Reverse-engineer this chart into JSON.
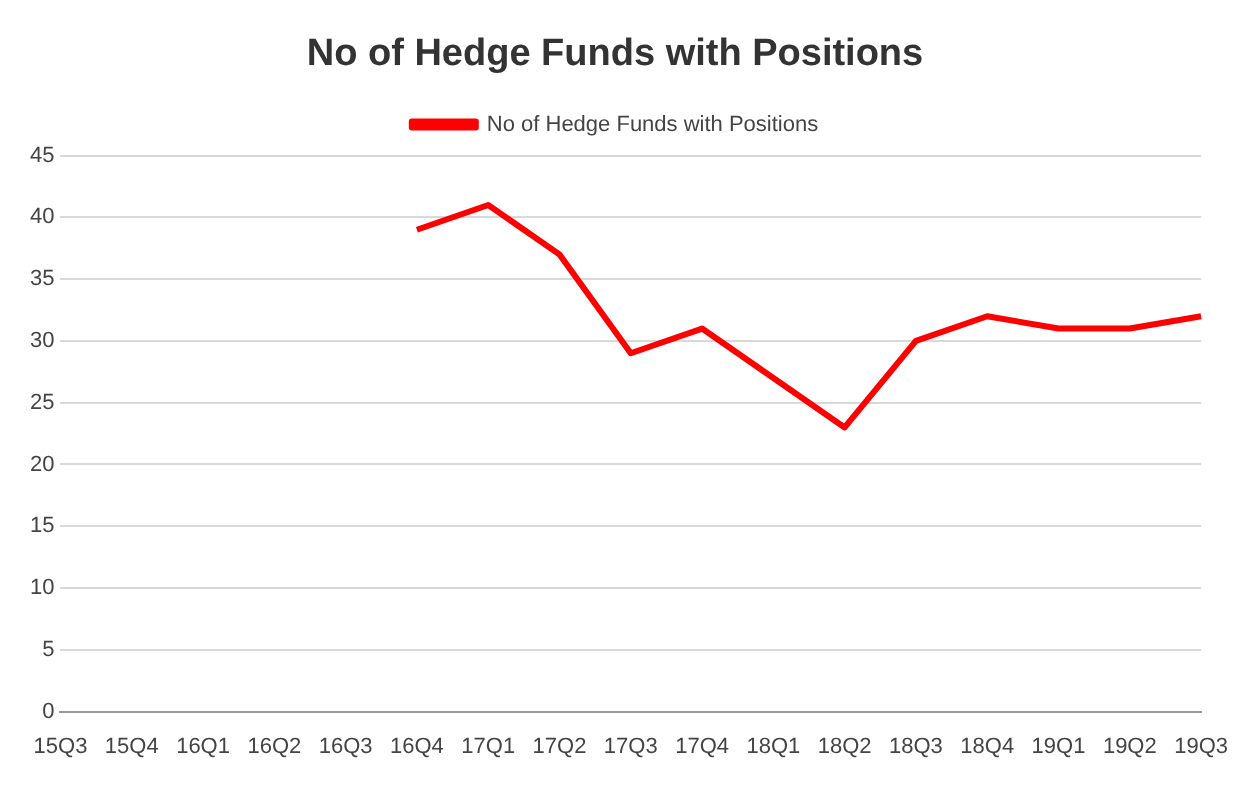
{
  "chart_data": {
    "type": "line",
    "title": "No of Hedge Funds with Positions",
    "categories": [
      "15Q3",
      "15Q4",
      "16Q1",
      "16Q2",
      "16Q3",
      "16Q4",
      "17Q1",
      "17Q2",
      "17Q3",
      "17Q4",
      "18Q1",
      "18Q2",
      "18Q3",
      "18Q4",
      "19Q1",
      "19Q2",
      "19Q3"
    ],
    "series": [
      {
        "name": "No of Hedge Funds with Positions",
        "color": "#ff0000",
        "values": [
          null,
          null,
          null,
          null,
          null,
          39,
          41,
          37,
          29,
          31,
          27,
          23,
          30,
          32,
          31,
          31,
          32
        ]
      }
    ],
    "ylim": [
      0,
      45
    ],
    "yticks": [
      0,
      5,
      10,
      15,
      20,
      25,
      30,
      35,
      40,
      45
    ],
    "grid": "y",
    "legend": "top",
    "marker": "none"
  }
}
